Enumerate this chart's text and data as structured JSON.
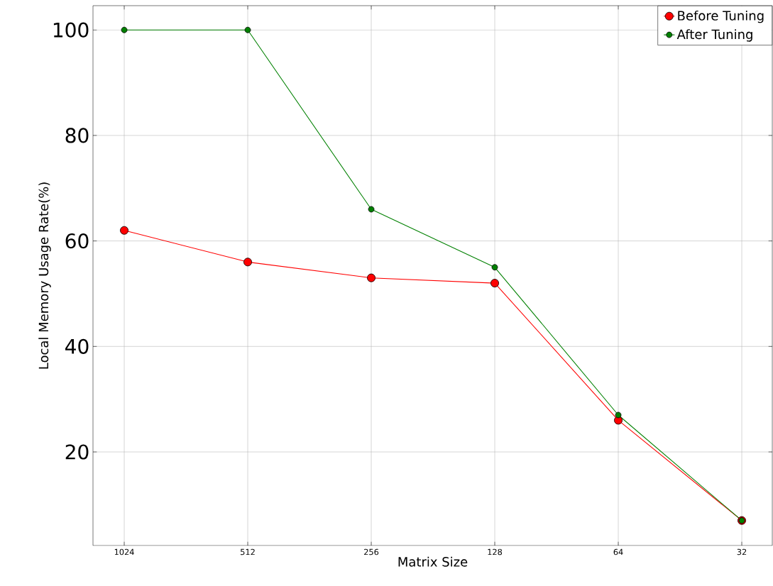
{
  "chart_data": {
    "type": "line",
    "xlabel": "Matrix Size",
    "ylabel": "Local Memory Usage Rate(%)",
    "categories": [
      "1024",
      "512",
      "256",
      "128",
      "64",
      "32"
    ],
    "series": [
      {
        "name": "Before Tuning",
        "color": "#ff0000",
        "values": [
          62,
          56,
          53,
          52,
          26,
          7
        ]
      },
      {
        "name": "After Tuning",
        "color": "#008000",
        "values": [
          100,
          100,
          66,
          55,
          27,
          7
        ]
      }
    ],
    "ylim": [
      2.25,
      104.6
    ],
    "yticks": [
      20,
      40,
      60,
      80,
      100
    ],
    "grid": true,
    "legend": "top right",
    "marker": "circle",
    "line_style": "solid"
  }
}
